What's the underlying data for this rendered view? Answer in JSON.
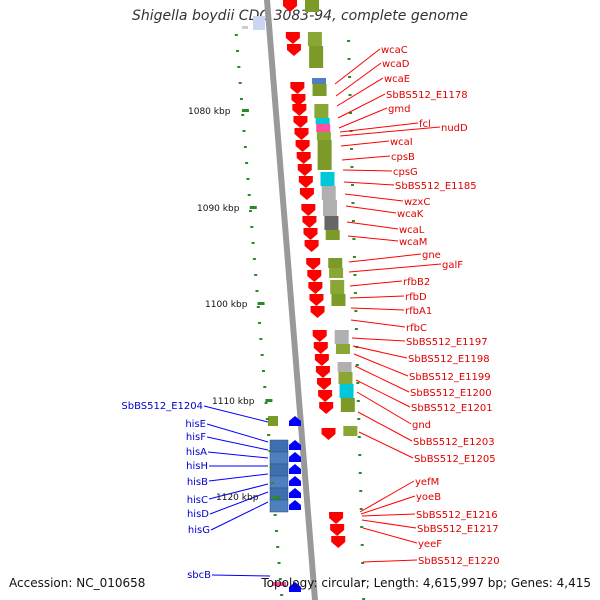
{
  "title": "Shigella boydii CDC 3083-94, complete genome",
  "accession": "Accession: NC_010658",
  "topology": "Topology: circular; Length: 4,615,997 bp; Genes: 4,415",
  "kbp_labels": [
    "1080 kbp",
    "1090 kbp",
    "1100 kbp",
    "1110 kbp",
    "1120 kbp"
  ],
  "right_labels": [
    "wcaC",
    "wcaD",
    "wcaE",
    "SbBS512_E1178",
    "gmd",
    "fcl",
    "nudD",
    "wcaI",
    "cpsB",
    "cpsG",
    "SbBS512_E1185",
    "wzxC",
    "wcaK",
    "wcaL",
    "wcaM",
    "gne",
    "galF",
    "rfbB2",
    "rfbD",
    "rfbA1",
    "rfbC",
    "SbBS512_E1197",
    "SbBS512_E1198",
    "SbBS512_E1199",
    "SbBS512_E1200",
    "SbBS512_E1201",
    "gnd",
    "SbBS512_E1203",
    "SbBS512_E1205",
    "yefM",
    "yoeB",
    "SbBS512_E1216",
    "SbBS512_E1217",
    "yeeF",
    "SbBS512_E1220"
  ],
  "left_labels": [
    "SbBS512_E1204",
    "hisE",
    "hisF",
    "hisA",
    "hisH",
    "hisB",
    "hisC",
    "hisD",
    "hisG",
    "sbcB"
  ],
  "colors": {
    "forward_strand": "#ff0000",
    "reverse_strand": "#0000ff",
    "tick": "#2a8a2a",
    "backbone": "#999999"
  }
}
